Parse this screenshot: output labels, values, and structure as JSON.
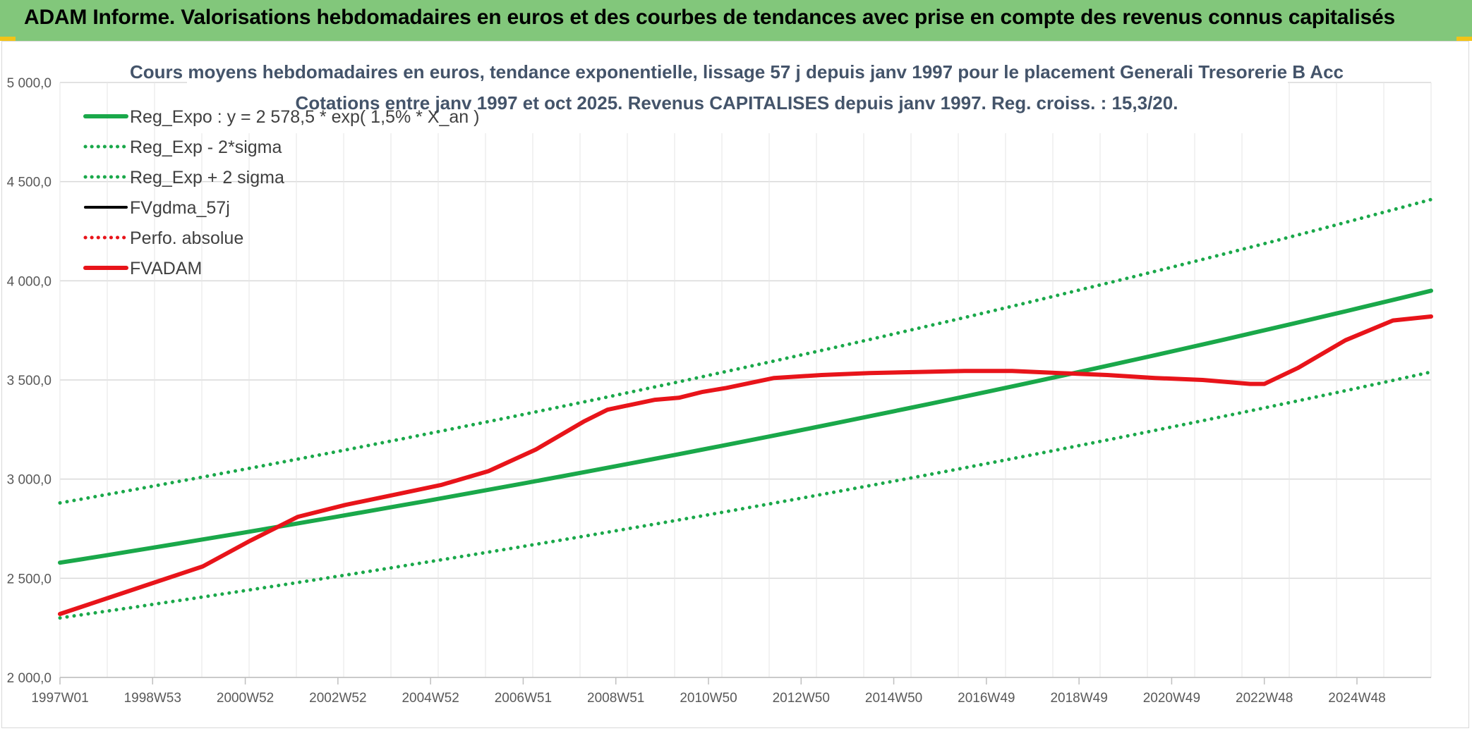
{
  "header": {
    "title": "ADAM Informe. Valorisations hebdomadaires en euros et des courbes de tendances avec prise en compte des revenus connus capitalisés"
  },
  "colors": {
    "header_bg": "#82c77b",
    "accent": "#f2c318",
    "reg_green": "#1aa84a",
    "fvadam_red": "#e8141a",
    "fvgdma_black": "#000000",
    "grid": "#d9d9d9"
  },
  "chart_data": {
    "type": "line",
    "title": "Cours moyens hebdomadaires en euros, tendance exponentielle, lissage 57 j depuis janv 1997 pour le placement Generali Tresorerie B Acc",
    "subtitle": "Cotations entre janv 1997 et oct 2025. Revenus CAPITALISES depuis janv 1997. Reg. croiss. : 15,3/20.",
    "xlabel": "",
    "ylabel": "",
    "x_ticks": [
      "1997W01",
      "1998W53",
      "2000W52",
      "2002W52",
      "2004W52",
      "2006W51",
      "2008W51",
      "2010W50",
      "2012W50",
      "2014W50",
      "2016W49",
      "2018W49",
      "2020W49",
      "2022W48",
      "2024W48"
    ],
    "x_range": [
      1997.0,
      2025.8
    ],
    "y_ticks": [
      "2 000,0",
      "2 500,0",
      "3 000,0",
      "3 500,0",
      "4 000,0",
      "4 500,0",
      "5 000,0"
    ],
    "y_tick_values": [
      2000,
      2500,
      3000,
      3500,
      4000,
      4500,
      5000
    ],
    "ylim": [
      2000,
      5000
    ],
    "grid": true,
    "legend_position": "top-left",
    "series": [
      {
        "name": "Reg_Expo : y = 2 578,5 * exp( 1,5% *  X_an )",
        "style": "solid-thick",
        "color": "#1aa84a",
        "x": [
          1997.0,
          2025.8
        ],
        "values": [
          2578.5,
          3950
        ]
      },
      {
        "name": "Reg_Exp - 2*sigma",
        "style": "dotted",
        "color": "#1aa84a",
        "x": [
          1997.0,
          2025.8
        ],
        "values": [
          2300,
          3540
        ]
      },
      {
        "name": "Reg_Exp + 2 sigma",
        "style": "dotted",
        "color": "#1aa84a",
        "x": [
          1997.0,
          2025.8
        ],
        "values": [
          2880,
          4410
        ]
      },
      {
        "name": "FVgdma_57j",
        "style": "solid",
        "color": "#000000",
        "x": [],
        "values": []
      },
      {
        "name": "Perfo. absolue",
        "style": "dotted",
        "color": "#e8141a",
        "x": [],
        "values": []
      },
      {
        "name": "FVADAM",
        "style": "solid-thick",
        "color": "#e8141a",
        "x": [
          1997.0,
          1998.0,
          1999.0,
          2000.0,
          2001.0,
          2002.0,
          2003.0,
          2004.0,
          2005.0,
          2006.0,
          2007.0,
          2008.0,
          2008.5,
          2009.5,
          2010.0,
          2010.5,
          2011.0,
          2012.0,
          2013.0,
          2014.0,
          2015.0,
          2016.0,
          2017.0,
          2018.0,
          2019.0,
          2020.0,
          2021.0,
          2022.0,
          2022.3,
          2023.0,
          2024.0,
          2025.0,
          2025.8
        ],
        "values": [
          2320,
          2400,
          2480,
          2560,
          2690,
          2810,
          2870,
          2920,
          2970,
          3040,
          3150,
          3290,
          3350,
          3400,
          3410,
          3440,
          3460,
          3510,
          3525,
          3535,
          3540,
          3545,
          3545,
          3535,
          3525,
          3510,
          3500,
          3480,
          3480,
          3560,
          3700,
          3800,
          3820
        ]
      }
    ]
  }
}
